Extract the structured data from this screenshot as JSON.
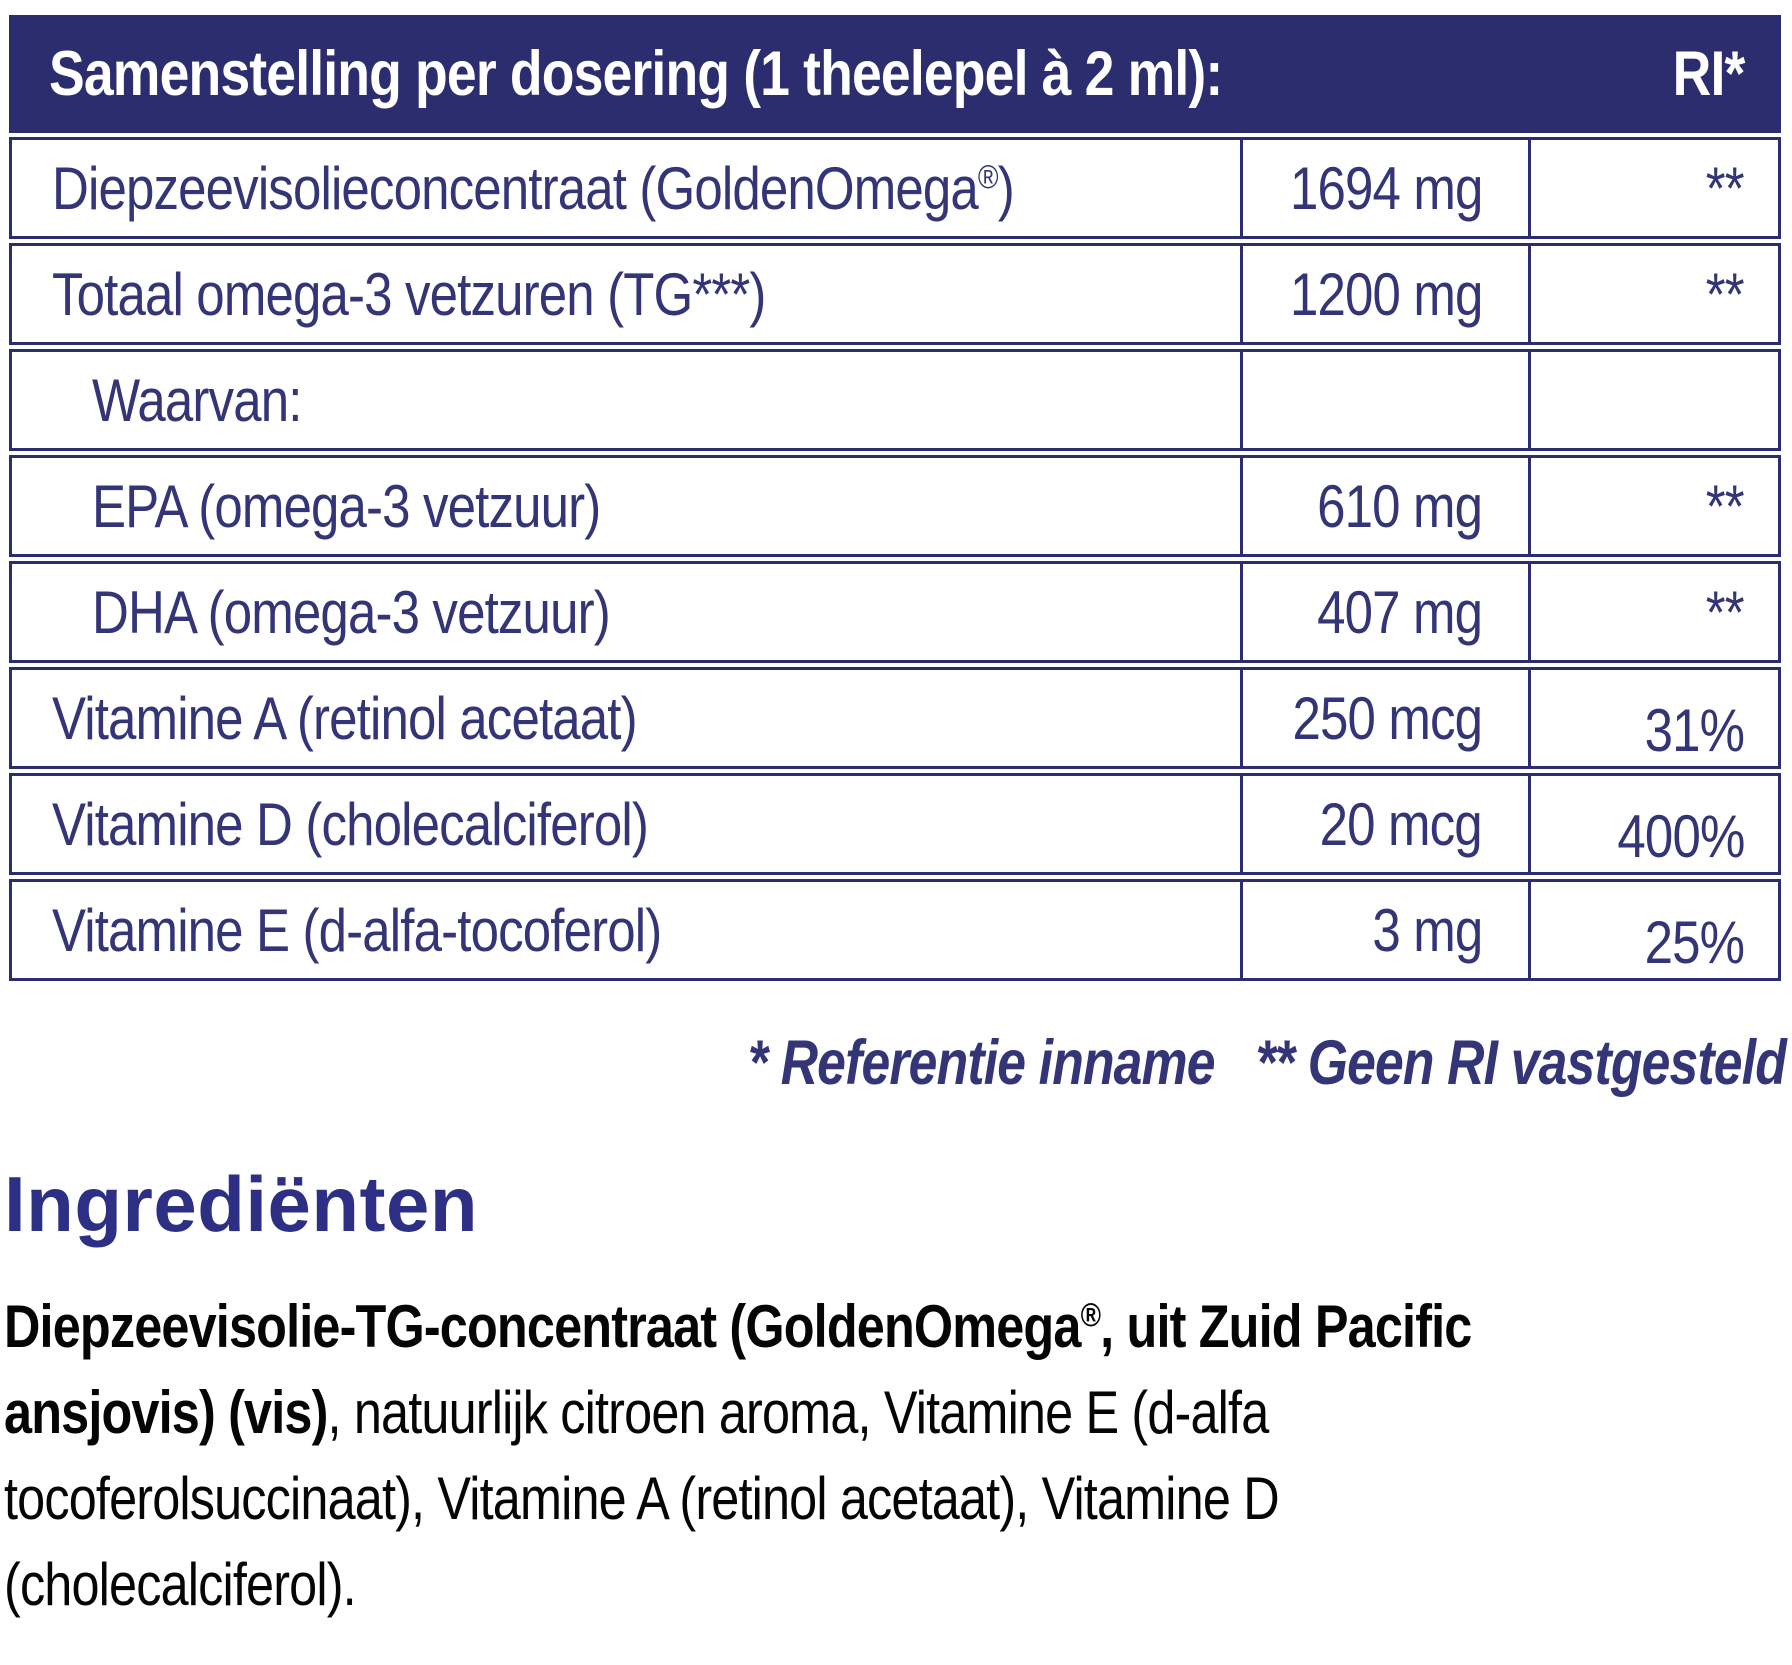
{
  "colors": {
    "navy": "#2B2D6E",
    "table-text": "#333577",
    "heading": "#2D2F85",
    "ink": "#050505"
  },
  "table": {
    "header": {
      "title": "Samenstelling per dosering (1 theelepel à 2 ml):",
      "ri_label": "RI*"
    },
    "rows": [
      {
        "label": "Diepzeevisolieconcentraat (GoldenOmega®)",
        "amount": "1694 mg",
        "ri": "**"
      },
      {
        "label": "Totaal omega-3 vetzuren (TG***)",
        "amount": "1200 mg",
        "ri": "**"
      },
      {
        "label": "Waarvan:",
        "amount": "",
        "ri": ""
      },
      {
        "label": "EPA (omega-3 vetzuur)",
        "amount": "610 mg",
        "ri": "**"
      },
      {
        "label": "DHA (omega-3 vetzuur)",
        "amount": "407 mg",
        "ri": "**"
      },
      {
        "label": "Vitamine A (retinol acetaat)",
        "amount": "250 mcg",
        "ri": "31%"
      },
      {
        "label": "Vitamine D (cholecalciferol)",
        "amount": "20 mcg",
        "ri": "400%"
      },
      {
        "label": "Vitamine E (d-alfa-tocoferol)",
        "amount": "3 mg",
        "ri": "25%"
      }
    ]
  },
  "footnotes": {
    "reference": "* Referentie inname",
    "no_ri": "** Geen RI vastgesteld"
  },
  "ingredients": {
    "heading": "Ingrediënten",
    "lines": [
      {
        "bold": "Diepzeevisolie-TG-concentraat (GoldenOmega®, uit Zuid Pacific",
        "regular": ""
      },
      {
        "bold": "ansjovis) (vis)",
        "regular": ", natuurlijk citroen aroma, Vitamine E (d-alfa"
      },
      {
        "bold": "",
        "regular": "tocoferolsuccinaat), Vitamine A (retinol acetaat), Vitamine D"
      },
      {
        "bold": "",
        "regular": "(cholecalciferol)."
      }
    ]
  }
}
